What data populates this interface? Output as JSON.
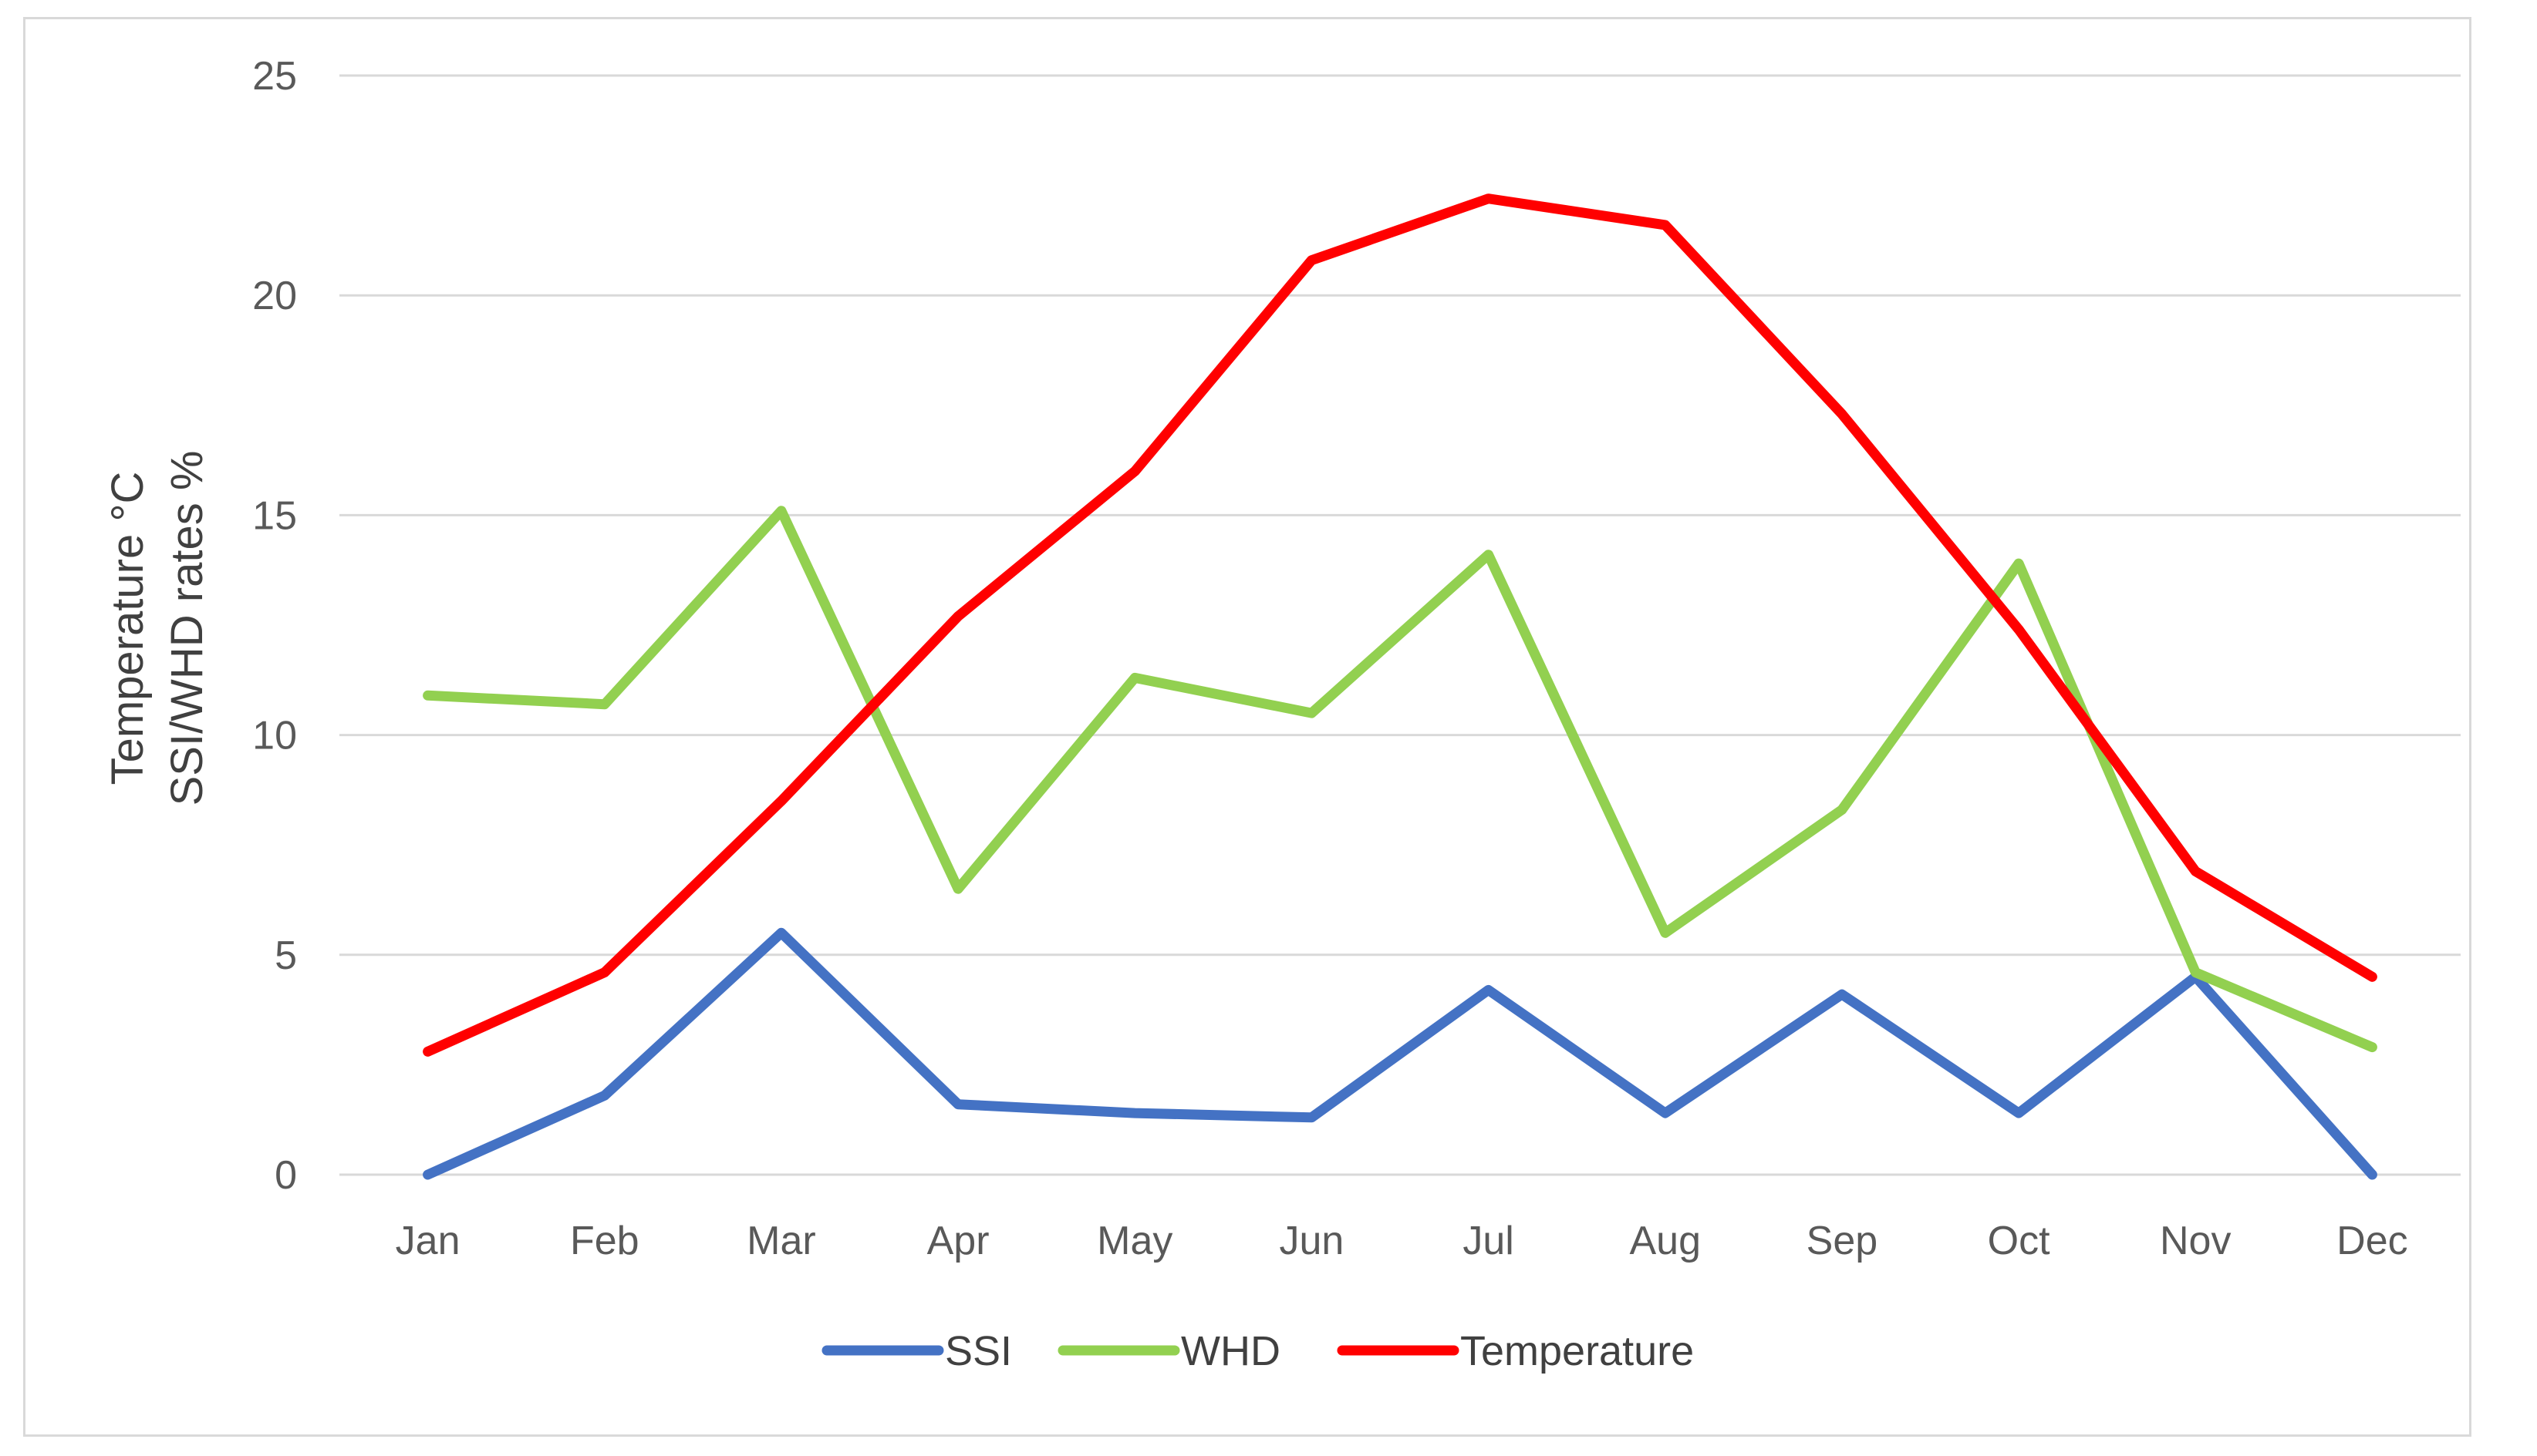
{
  "chart_data": {
    "type": "line",
    "title": "",
    "xlabel": "",
    "ylabel_lines": [
      "Temperature °C",
      "SSI/WHD rates %"
    ],
    "categories": [
      "Jan",
      "Feb",
      "Mar",
      "Apr",
      "May",
      "Jun",
      "Jul",
      "Aug",
      "Sep",
      "Oct",
      "Nov",
      "Dec"
    ],
    "ylim": [
      0,
      25
    ],
    "yticks": [
      0,
      5,
      10,
      15,
      20,
      25
    ],
    "grid": true,
    "legend_position": "bottom",
    "series": [
      {
        "name": "SSI",
        "color": "#4472c4",
        "values": [
          0,
          1.8,
          5.5,
          1.6,
          1.4,
          1.3,
          4.2,
          1.4,
          4.1,
          1.4,
          4.5,
          0
        ]
      },
      {
        "name": "WHD",
        "color": "#92d050",
        "values": [
          10.9,
          10.7,
          15.1,
          6.5,
          11.3,
          10.5,
          14.1,
          5.5,
          8.3,
          13.9,
          4.6,
          2.9
        ]
      },
      {
        "name": "Temperature",
        "color": "#ff0000",
        "values": [
          2.8,
          4.6,
          8.5,
          12.7,
          16.0,
          20.8,
          22.2,
          21.6,
          17.3,
          12.4,
          6.9,
          4.5
        ]
      }
    ]
  }
}
